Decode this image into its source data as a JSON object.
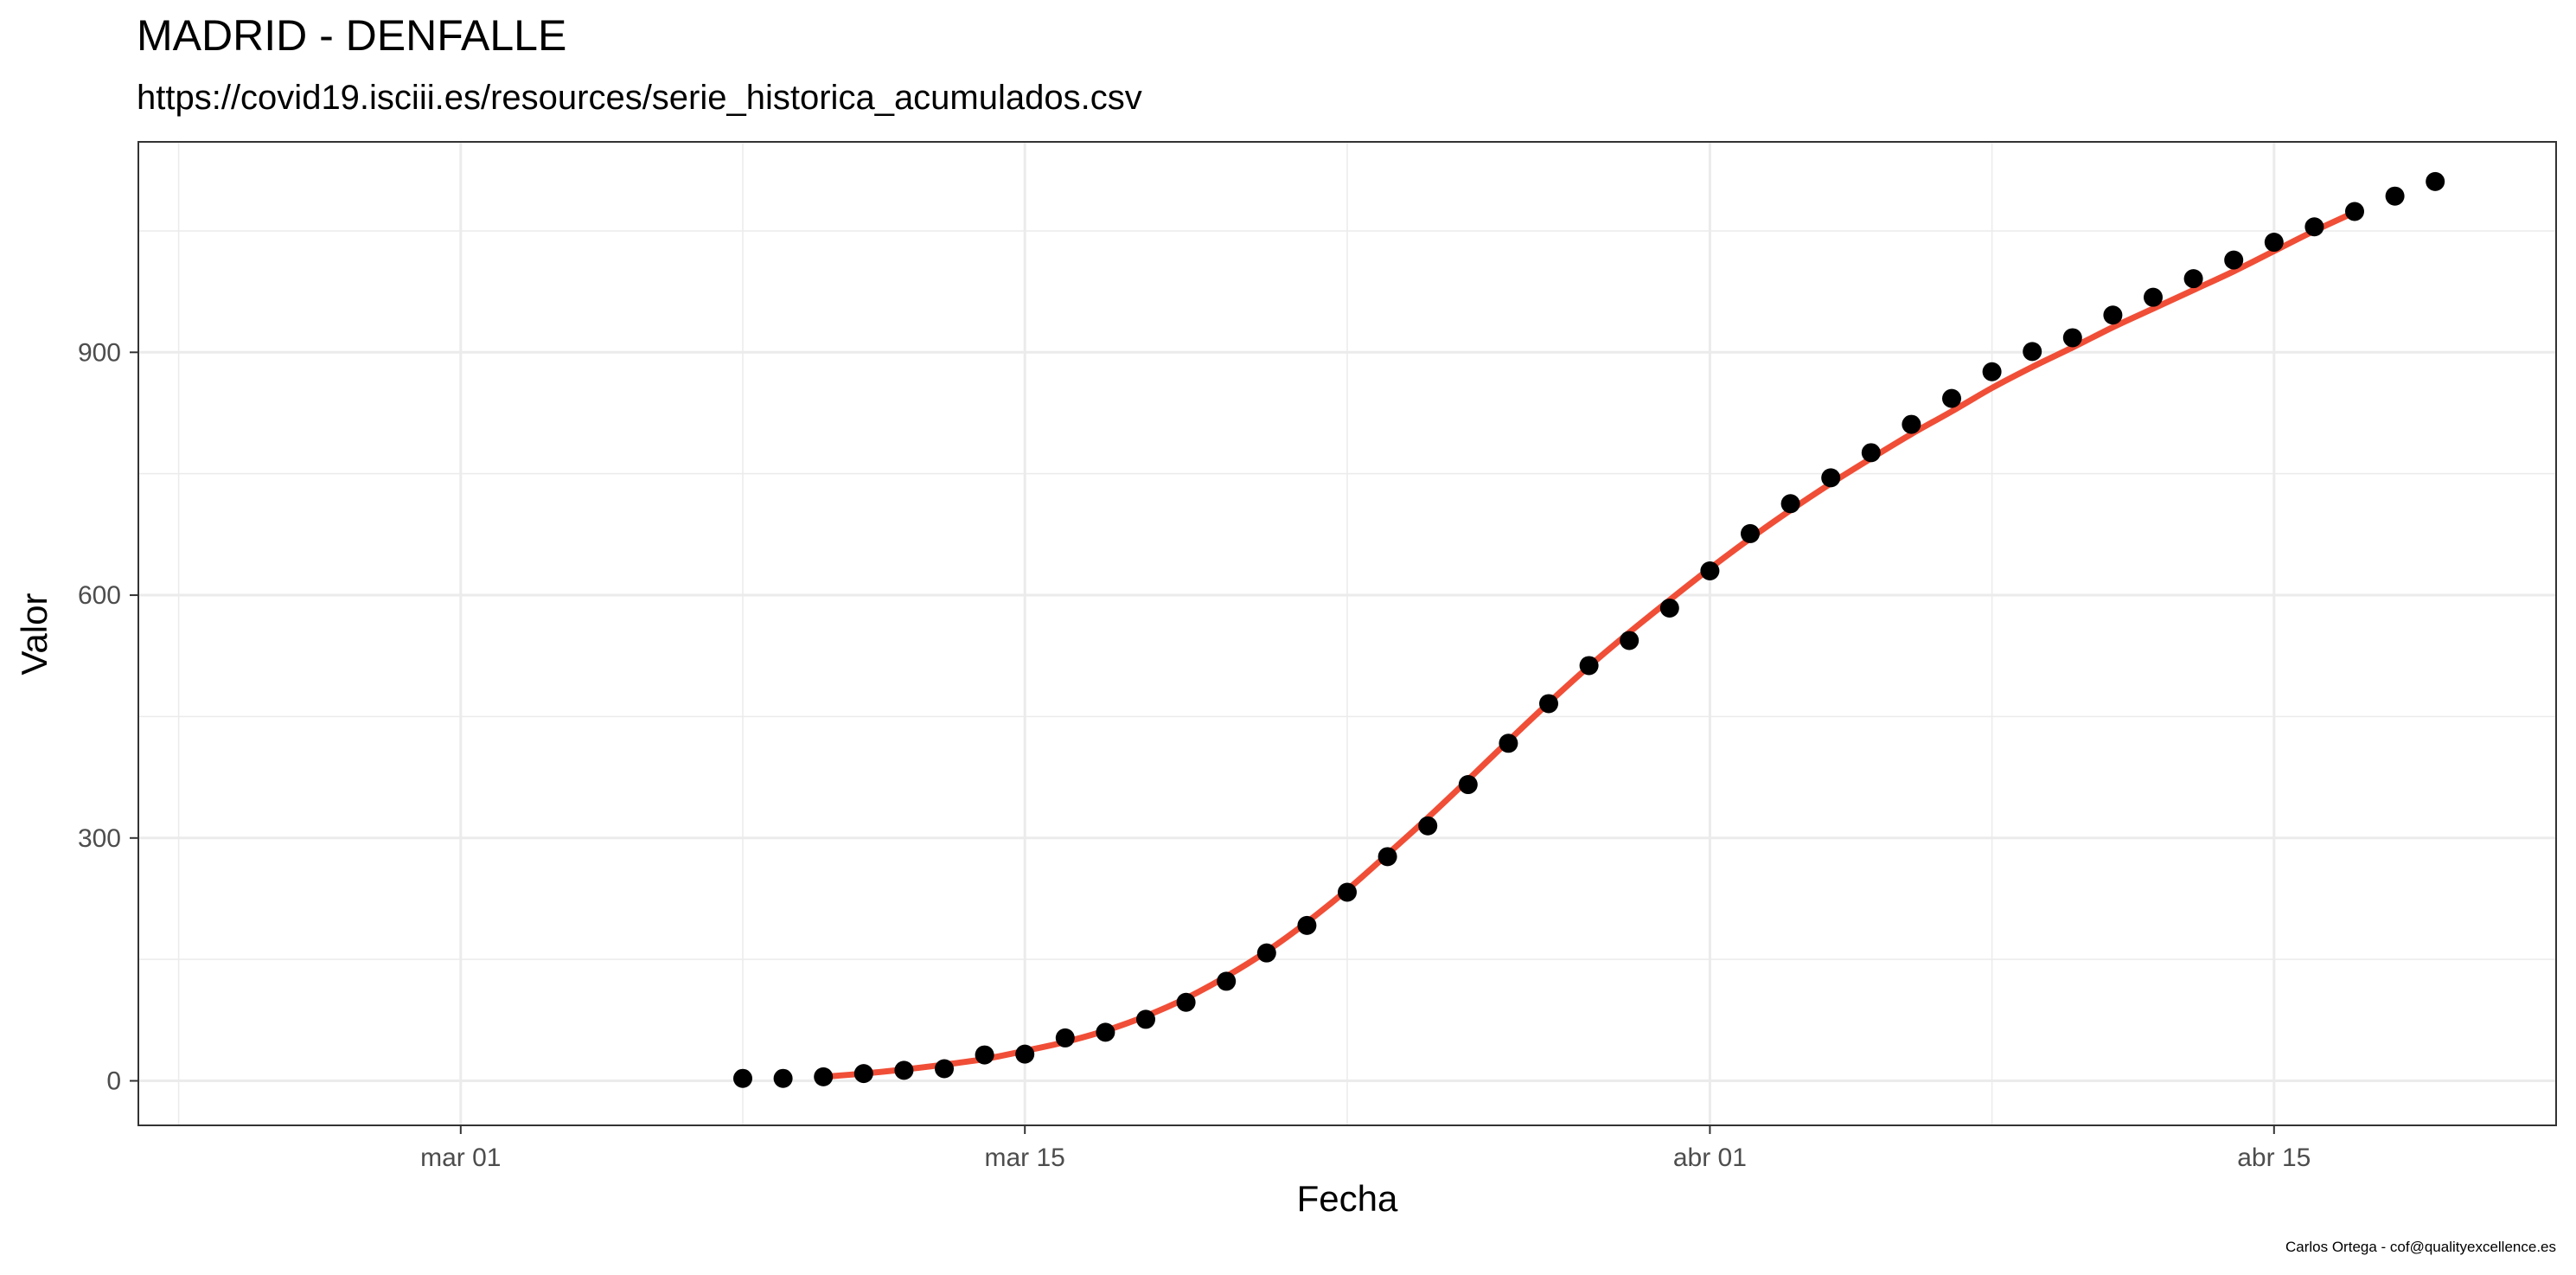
{
  "chart_data": {
    "type": "line",
    "title": "MADRID - DENFALLE",
    "subtitle": "https://covid19.isciii.es/resources/serie_historica_acumulados.csv",
    "xlabel": "Fecha",
    "ylabel": "Valor",
    "caption": "Carlos Ortega - cof@qualityexcellence.es",
    "x_ticks": [
      {
        "label": "mar 01",
        "date": "2020-03-01"
      },
      {
        "label": "mar 15",
        "date": "2020-03-15"
      },
      {
        "label": "abr 01",
        "date": "2020-04-01"
      },
      {
        "label": "abr 15",
        "date": "2020-04-15"
      }
    ],
    "y_ticks": [
      0,
      300,
      600,
      900
    ],
    "xlim": [
      "2020-02-22",
      "2020-04-22"
    ],
    "ylim": [
      -55,
      1160
    ],
    "grid": true,
    "colors": {
      "points": "#000000",
      "smooth": "#f04e37",
      "grid": "#ebebeb",
      "panel_border": "#333333"
    },
    "series": [
      {
        "style": "points",
        "x": [
          "2020-03-08",
          "2020-03-09",
          "2020-03-10",
          "2020-03-11",
          "2020-03-12",
          "2020-03-13",
          "2020-03-14",
          "2020-03-15",
          "2020-03-16",
          "2020-03-17",
          "2020-03-18",
          "2020-03-19",
          "2020-03-20",
          "2020-03-21",
          "2020-03-22",
          "2020-03-23",
          "2020-03-24",
          "2020-03-25",
          "2020-03-26",
          "2020-03-27",
          "2020-03-28",
          "2020-03-29",
          "2020-03-30",
          "2020-03-31",
          "2020-04-01",
          "2020-04-02",
          "2020-04-03",
          "2020-04-04",
          "2020-04-05",
          "2020-04-06",
          "2020-04-07",
          "2020-04-08",
          "2020-04-09",
          "2020-04-10",
          "2020-04-11",
          "2020-04-12",
          "2020-04-13",
          "2020-04-14",
          "2020-04-15",
          "2020-04-16",
          "2020-04-17",
          "2020-04-18",
          "2020-04-19"
        ],
        "values": [
          3,
          3,
          5,
          9,
          13,
          15,
          32,
          33,
          53,
          60,
          76,
          97,
          123,
          158,
          192,
          233,
          277,
          315,
          366,
          417,
          466,
          513,
          544,
          584,
          630,
          676,
          713,
          745,
          776,
          811,
          843,
          876,
          901,
          918,
          946,
          968,
          991,
          1014,
          1036,
          1055,
          1074,
          1093,
          1111
        ]
      },
      {
        "style": "smooth",
        "x": [
          "2020-03-10",
          "2020-03-11",
          "2020-03-12",
          "2020-03-13",
          "2020-03-14",
          "2020-03-15",
          "2020-03-16",
          "2020-03-17",
          "2020-03-18",
          "2020-03-19",
          "2020-03-20",
          "2020-03-21",
          "2020-03-22",
          "2020-03-23",
          "2020-03-24",
          "2020-03-25",
          "2020-03-26",
          "2020-03-27",
          "2020-03-28",
          "2020-03-29",
          "2020-03-30",
          "2020-03-31",
          "2020-04-01",
          "2020-04-02",
          "2020-04-03",
          "2020-04-04",
          "2020-04-05",
          "2020-04-06",
          "2020-04-07",
          "2020-04-08",
          "2020-04-09",
          "2020-04-10",
          "2020-04-11",
          "2020-04-12",
          "2020-04-13",
          "2020-04-14",
          "2020-04-15",
          "2020-04-16",
          "2020-04-17"
        ],
        "values": [
          5,
          9,
          14,
          20,
          27,
          37,
          48,
          62,
          80,
          102,
          129,
          160,
          196,
          236,
          280,
          325,
          372,
          420,
          467,
          512,
          554,
          594,
          633,
          670,
          705,
          738,
          769,
          799,
          827,
          856,
          882,
          906,
          931,
          954,
          977,
          1000,
          1025,
          1050,
          1073
        ]
      }
    ]
  }
}
